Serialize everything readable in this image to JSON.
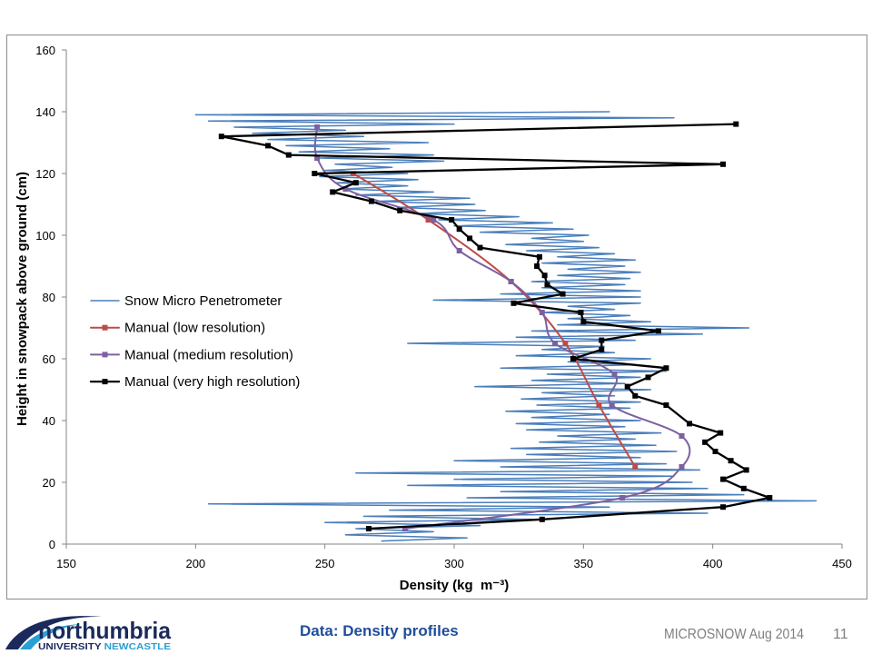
{
  "slide": {
    "caption": "Data: Density profiles",
    "event": "MICROSNOW Aug 2014",
    "page_number": "11",
    "logo": {
      "wordmark": "northumbria",
      "university": "UNIVERSITY",
      "city": "NEWCASTLE"
    }
  },
  "colors": {
    "caption": "#1f4e9a",
    "footer_text": "#7f7f7f",
    "logo_navy": "#1b2a5b",
    "logo_light_blue": "#2a9fd6",
    "frame": "#8c8c8c"
  },
  "chart_data": {
    "type": "line",
    "xlabel": "Density (kg  m⁻³)",
    "ylabel": "Height in snowpack above ground (cm)",
    "xlim": [
      150,
      450
    ],
    "ylim": [
      0,
      160
    ],
    "xticks": [
      150,
      200,
      250,
      300,
      350,
      400,
      450
    ],
    "yticks": [
      0,
      20,
      40,
      60,
      80,
      100,
      120,
      140,
      160
    ],
    "grid": false,
    "legend": "left-middle",
    "series": [
      {
        "name": "Snow Micro Penetrometer",
        "color": "#4a7ebb",
        "marker": "none",
        "smooth": false,
        "x": [
          272,
          305,
          258,
          292,
          262,
          310,
          250,
          330,
          265,
          398,
          275,
          360,
          205,
          440,
          305,
          412,
          318,
          398,
          282,
          392,
          300,
          385,
          262,
          395,
          318,
          382,
          300,
          372,
          328,
          386,
          322,
          378,
          333,
          370,
          340,
          380,
          328,
          366,
          324,
          372,
          330,
          360,
          320,
          368,
          332,
          372,
          326,
          362,
          334,
          376,
          308,
          366,
          330,
          372,
          336,
          382,
          318,
          368,
          344,
          376,
          324,
          362,
          334,
          358,
          282,
          370,
          324,
          396,
          330,
          414,
          340,
          376,
          344,
          368,
          334,
          362,
          344,
          372,
          292,
          372,
          318,
          372,
          334,
          366,
          330,
          368,
          340,
          372,
          344,
          366,
          334,
          370,
          340,
          362,
          328,
          356,
          320,
          350,
          330,
          352,
          310,
          346,
          300,
          338,
          294,
          325,
          285,
          312,
          278,
          308,
          270,
          306,
          262,
          292,
          256,
          282,
          254,
          286,
          248,
          282,
          250,
          276,
          254,
          296,
          248,
          292,
          240,
          275,
          235,
          290,
          228,
          265,
          222,
          258,
          215,
          300,
          205,
          385,
          200,
          360
        ],
        "y": [
          1,
          2,
          3,
          4,
          5,
          6,
          7,
          8,
          9,
          10,
          11,
          12,
          13,
          14,
          15,
          16,
          17,
          18,
          19,
          20,
          21,
          22,
          23,
          24,
          25,
          26,
          27,
          28,
          29,
          30,
          31,
          32,
          33,
          34,
          35,
          36,
          37,
          38,
          39,
          40,
          41,
          42,
          43,
          44,
          45,
          46,
          47,
          48,
          49,
          50,
          51,
          52,
          53,
          54,
          55,
          56,
          57,
          58,
          59,
          60,
          61,
          62,
          63,
          64,
          65,
          66,
          67,
          68,
          69,
          70,
          71,
          72,
          73,
          74,
          75,
          76,
          77,
          78,
          79,
          80,
          81,
          82,
          83,
          84,
          85,
          86,
          87,
          88,
          89,
          90,
          91,
          92,
          93,
          94,
          95,
          96,
          97,
          98,
          99,
          100,
          101,
          102,
          103,
          104,
          105,
          106,
          107,
          108,
          109,
          110,
          111,
          112,
          113,
          114,
          115,
          116,
          117,
          118,
          119,
          120,
          121,
          122,
          123,
          124,
          125,
          126,
          127,
          128,
          129,
          130,
          131,
          132,
          133,
          134,
          135,
          136,
          137,
          138,
          139,
          140
        ]
      },
      {
        "name": "Manual (low resolution)",
        "color": "#be4b48",
        "marker": "square",
        "smooth": true,
        "x": [
          370,
          356,
          343,
          322,
          290,
          261
        ],
        "y": [
          25,
          45,
          65,
          85,
          105,
          120
        ]
      },
      {
        "name": "Manual (medium resolution)",
        "color": "#7d60a0",
        "marker": "square",
        "smooth": true,
        "x": [
          281,
          365,
          388,
          388,
          361,
          362,
          339,
          334,
          322,
          302,
          292,
          258,
          247,
          247
        ],
        "y": [
          5,
          15,
          25,
          35,
          45,
          55,
          65,
          75,
          85,
          95,
          105,
          115,
          125,
          135
        ]
      },
      {
        "name": "Manual (very high resolution)",
        "color": "#000000",
        "marker": "square",
        "smooth": false,
        "x": [
          267,
          334,
          404,
          422,
          412,
          404,
          413,
          407,
          401,
          397,
          403,
          391,
          382,
          370,
          367,
          375,
          382,
          346,
          357,
          357,
          379,
          350,
          349,
          323,
          342,
          336,
          335,
          332,
          333,
          310,
          306,
          302,
          299,
          279,
          268,
          253,
          262,
          246,
          404,
          236,
          228,
          210,
          409
        ],
        "y": [
          5,
          8,
          12,
          15,
          18,
          21,
          24,
          27,
          30,
          33,
          36,
          39,
          45,
          48,
          51,
          54,
          57,
          60,
          63,
          66,
          69,
          72,
          75,
          78,
          81,
          84,
          87,
          90,
          93,
          96,
          99,
          102,
          105,
          108,
          111,
          114,
          117,
          120,
          123,
          126,
          129,
          132,
          136
        ]
      }
    ]
  }
}
